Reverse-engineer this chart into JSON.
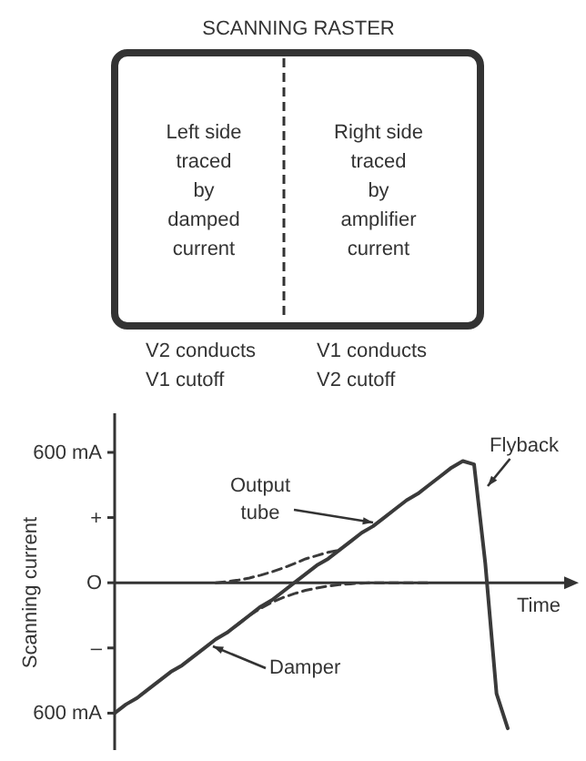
{
  "chart_data": [
    {
      "type": "other",
      "title": "SCANNING RASTER",
      "annotations": [
        "Left side\ntraced\nby\ndamped\ncurrent",
        "Right side\ntraced\nby\namplifier\ncurrent",
        "V2 conducts\nV1 cutoff",
        "V1 conducts\nV2 cutoff"
      ]
    },
    {
      "type": "line",
      "xlabel": "Time",
      "ylabel": "Scanning current",
      "ylim": [
        -770,
        780
      ],
      "tick_labels": "y",
      "categories": [
        null,
        null,
        null,
        null,
        null,
        null,
        null,
        null,
        null,
        null,
        null,
        null,
        null,
        null,
        null,
        null,
        null,
        null,
        null,
        null,
        null,
        null,
        null,
        null,
        null,
        null,
        null,
        null,
        null,
        null,
        null,
        null,
        null,
        null,
        null,
        null
      ],
      "yticks": [
        {
          "value": 600,
          "label": "600 mA"
        },
        {
          "value": 300,
          "label": "+"
        },
        {
          "value": 0,
          "label": "O"
        },
        {
          "value": -300,
          "label": "–"
        },
        {
          "value": -600,
          "label": "600 mA"
        }
      ],
      "series": [
        {
          "color": "#3a3a3a",
          "line_style": "solid",
          "values": [
            -600,
            -560,
            -530,
            -490,
            -450,
            -410,
            -380,
            -340,
            -300,
            -260,
            -230,
            -190,
            -150,
            -110,
            -80,
            -40,
            0,
            40,
            80,
            110,
            150,
            190,
            230,
            260,
            300,
            340,
            380,
            410,
            450,
            490,
            530,
            560,
            545,
            90,
            -510,
            -670
          ]
        },
        {
          "color": "#3a3a3a",
          "line_style": "dashed",
          "values": [
            null,
            null,
            null,
            null,
            null,
            null,
            null,
            null,
            null,
            0,
            5,
            12,
            22,
            35,
            50,
            68,
            88,
            110,
            125,
            140,
            150,
            null,
            null,
            null,
            null,
            null,
            null,
            null,
            null,
            null,
            null,
            null,
            null,
            null,
            null,
            null
          ]
        },
        {
          "color": "#3a3a3a",
          "line_style": "dashed",
          "values": [
            null,
            null,
            null,
            null,
            null,
            null,
            null,
            null,
            null,
            null,
            null,
            -190,
            -150,
            -118,
            -90,
            -68,
            -50,
            -35,
            -24,
            -15,
            -9,
            -5,
            -2,
            0,
            0,
            0,
            0,
            0,
            0,
            null,
            null,
            null,
            null,
            null,
            null,
            null
          ]
        }
      ],
      "annotations": [
        "Output\ntube",
        "Damper",
        "Flyback"
      ]
    }
  ]
}
